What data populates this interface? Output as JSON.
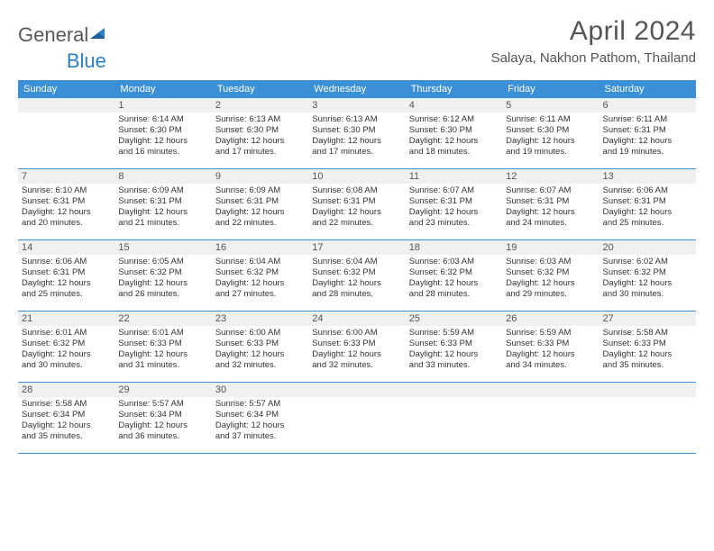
{
  "brand": {
    "part1": "General",
    "part2": "Blue"
  },
  "title": "April 2024",
  "location": "Salaya, Nakhon Pathom, Thailand",
  "colors": {
    "header_bg": "#3b8fd4",
    "header_text": "#ffffff",
    "shade_bg": "#eef0f1",
    "row_border": "#3b8fd4",
    "text_dark": "#333333",
    "text_muted": "#555555",
    "brand_gray": "#5a5a5a",
    "brand_blue": "#2b7fc4",
    "page_bg": "#ffffff"
  },
  "typography": {
    "title_fontsize": 30,
    "location_fontsize": 15,
    "weekday_fontsize": 11,
    "daynum_fontsize": 11,
    "detail_fontsize": 9.5
  },
  "weekdays": [
    "Sunday",
    "Monday",
    "Tuesday",
    "Wednesday",
    "Thursday",
    "Friday",
    "Saturday"
  ],
  "weeks": [
    [
      {
        "day": "",
        "lines": []
      },
      {
        "day": "1",
        "lines": [
          "Sunrise: 6:14 AM",
          "Sunset: 6:30 PM",
          "Daylight: 12 hours",
          "and 16 minutes."
        ]
      },
      {
        "day": "2",
        "lines": [
          "Sunrise: 6:13 AM",
          "Sunset: 6:30 PM",
          "Daylight: 12 hours",
          "and 17 minutes."
        ]
      },
      {
        "day": "3",
        "lines": [
          "Sunrise: 6:13 AM",
          "Sunset: 6:30 PM",
          "Daylight: 12 hours",
          "and 17 minutes."
        ]
      },
      {
        "day": "4",
        "lines": [
          "Sunrise: 6:12 AM",
          "Sunset: 6:30 PM",
          "Daylight: 12 hours",
          "and 18 minutes."
        ]
      },
      {
        "day": "5",
        "lines": [
          "Sunrise: 6:11 AM",
          "Sunset: 6:30 PM",
          "Daylight: 12 hours",
          "and 19 minutes."
        ]
      },
      {
        "day": "6",
        "lines": [
          "Sunrise: 6:11 AM",
          "Sunset: 6:31 PM",
          "Daylight: 12 hours",
          "and 19 minutes."
        ]
      }
    ],
    [
      {
        "day": "7",
        "lines": [
          "Sunrise: 6:10 AM",
          "Sunset: 6:31 PM",
          "Daylight: 12 hours",
          "and 20 minutes."
        ]
      },
      {
        "day": "8",
        "lines": [
          "Sunrise: 6:09 AM",
          "Sunset: 6:31 PM",
          "Daylight: 12 hours",
          "and 21 minutes."
        ]
      },
      {
        "day": "9",
        "lines": [
          "Sunrise: 6:09 AM",
          "Sunset: 6:31 PM",
          "Daylight: 12 hours",
          "and 22 minutes."
        ]
      },
      {
        "day": "10",
        "lines": [
          "Sunrise: 6:08 AM",
          "Sunset: 6:31 PM",
          "Daylight: 12 hours",
          "and 22 minutes."
        ]
      },
      {
        "day": "11",
        "lines": [
          "Sunrise: 6:07 AM",
          "Sunset: 6:31 PM",
          "Daylight: 12 hours",
          "and 23 minutes."
        ]
      },
      {
        "day": "12",
        "lines": [
          "Sunrise: 6:07 AM",
          "Sunset: 6:31 PM",
          "Daylight: 12 hours",
          "and 24 minutes."
        ]
      },
      {
        "day": "13",
        "lines": [
          "Sunrise: 6:06 AM",
          "Sunset: 6:31 PM",
          "Daylight: 12 hours",
          "and 25 minutes."
        ]
      }
    ],
    [
      {
        "day": "14",
        "lines": [
          "Sunrise: 6:06 AM",
          "Sunset: 6:31 PM",
          "Daylight: 12 hours",
          "and 25 minutes."
        ]
      },
      {
        "day": "15",
        "lines": [
          "Sunrise: 6:05 AM",
          "Sunset: 6:32 PM",
          "Daylight: 12 hours",
          "and 26 minutes."
        ]
      },
      {
        "day": "16",
        "lines": [
          "Sunrise: 6:04 AM",
          "Sunset: 6:32 PM",
          "Daylight: 12 hours",
          "and 27 minutes."
        ]
      },
      {
        "day": "17",
        "lines": [
          "Sunrise: 6:04 AM",
          "Sunset: 6:32 PM",
          "Daylight: 12 hours",
          "and 28 minutes."
        ]
      },
      {
        "day": "18",
        "lines": [
          "Sunrise: 6:03 AM",
          "Sunset: 6:32 PM",
          "Daylight: 12 hours",
          "and 28 minutes."
        ]
      },
      {
        "day": "19",
        "lines": [
          "Sunrise: 6:03 AM",
          "Sunset: 6:32 PM",
          "Daylight: 12 hours",
          "and 29 minutes."
        ]
      },
      {
        "day": "20",
        "lines": [
          "Sunrise: 6:02 AM",
          "Sunset: 6:32 PM",
          "Daylight: 12 hours",
          "and 30 minutes."
        ]
      }
    ],
    [
      {
        "day": "21",
        "lines": [
          "Sunrise: 6:01 AM",
          "Sunset: 6:32 PM",
          "Daylight: 12 hours",
          "and 30 minutes."
        ]
      },
      {
        "day": "22",
        "lines": [
          "Sunrise: 6:01 AM",
          "Sunset: 6:33 PM",
          "Daylight: 12 hours",
          "and 31 minutes."
        ]
      },
      {
        "day": "23",
        "lines": [
          "Sunrise: 6:00 AM",
          "Sunset: 6:33 PM",
          "Daylight: 12 hours",
          "and 32 minutes."
        ]
      },
      {
        "day": "24",
        "lines": [
          "Sunrise: 6:00 AM",
          "Sunset: 6:33 PM",
          "Daylight: 12 hours",
          "and 32 minutes."
        ]
      },
      {
        "day": "25",
        "lines": [
          "Sunrise: 5:59 AM",
          "Sunset: 6:33 PM",
          "Daylight: 12 hours",
          "and 33 minutes."
        ]
      },
      {
        "day": "26",
        "lines": [
          "Sunrise: 5:59 AM",
          "Sunset: 6:33 PM",
          "Daylight: 12 hours",
          "and 34 minutes."
        ]
      },
      {
        "day": "27",
        "lines": [
          "Sunrise: 5:58 AM",
          "Sunset: 6:33 PM",
          "Daylight: 12 hours",
          "and 35 minutes."
        ]
      }
    ],
    [
      {
        "day": "28",
        "lines": [
          "Sunrise: 5:58 AM",
          "Sunset: 6:34 PM",
          "Daylight: 12 hours",
          "and 35 minutes."
        ]
      },
      {
        "day": "29",
        "lines": [
          "Sunrise: 5:57 AM",
          "Sunset: 6:34 PM",
          "Daylight: 12 hours",
          "and 36 minutes."
        ]
      },
      {
        "day": "30",
        "lines": [
          "Sunrise: 5:57 AM",
          "Sunset: 6:34 PM",
          "Daylight: 12 hours",
          "and 37 minutes."
        ]
      },
      {
        "day": "",
        "lines": []
      },
      {
        "day": "",
        "lines": []
      },
      {
        "day": "",
        "lines": []
      },
      {
        "day": "",
        "lines": []
      }
    ]
  ]
}
